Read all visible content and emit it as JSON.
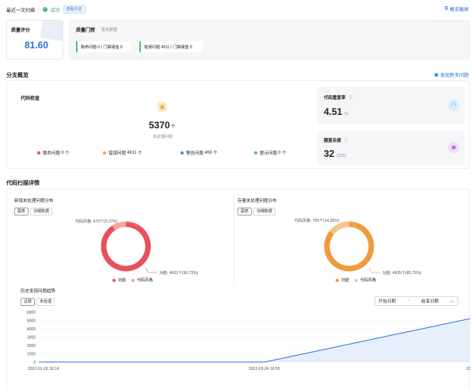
{
  "header": {
    "title": "最近一次扫描",
    "status": "成功",
    "log_link": "查看日志",
    "summary_link": "概览截屏"
  },
  "quality_score": {
    "label": "质量评分",
    "value": "81.60"
  },
  "quality_gate": {
    "label": "质量门禁",
    "link": "看无数据",
    "items": [
      "致命问题 0 / 门禁阈值 0",
      "错误问题 4911 / 门禁阈值 0"
    ]
  },
  "branch_overview": {
    "title": "分支概览",
    "discover_link": "发现新多问题"
  },
  "code_check": {
    "title": "代码检查",
    "value": "5370",
    "unit": "个",
    "sub": "未处理问题",
    "items": [
      {
        "label": "致命问题",
        "count": "0",
        "unit": "个",
        "color": "#e8505b"
      },
      {
        "label": "错误问题",
        "count": "4911",
        "unit": "个",
        "color": "#f0a24a"
      },
      {
        "label": "警告问题",
        "count": "459",
        "unit": "个",
        "color": "#4a8fe0"
      },
      {
        "label": "提示问题",
        "count": "0",
        "unit": "个",
        "color": "#52c26b"
      }
    ]
  },
  "duplication": {
    "title": "代码重复率",
    "value": "4.51",
    "unit": "%"
  },
  "complexity": {
    "title": "圈复杂度",
    "value": "32",
    "extra": "(222)"
  },
  "scan_detail": {
    "title": "代码扫描详情"
  },
  "new_dist": {
    "title": "新增未处理问题分布",
    "tabs": [
      "图表",
      "详细数据"
    ],
    "label_top": "代码风格: 470个(9.27%)",
    "label_bottom": "功能: 4602个(90.73%)",
    "legend": [
      "功能",
      "代码风格"
    ]
  },
  "stock_dist": {
    "title": "存量未处理问题分布",
    "tabs": [
      "图表",
      "详细数据"
    ],
    "label_top": "代码风格: 765个(14.25%)",
    "label_bottom": "功能: 4605个(85.75%)",
    "legend": [
      "功能",
      "代码风格"
    ]
  },
  "trend": {
    "title": "历史发现问题趋势",
    "tabs": [
      "总数",
      "未处理"
    ],
    "start_placeholder": "开始日期",
    "sep": "~",
    "end_placeholder": "结束日期"
  },
  "chart_data": [
    {
      "type": "pie",
      "title": "新增未处理问题分布",
      "categories": [
        "功能",
        "代码风格"
      ],
      "values": [
        4602,
        470
      ],
      "percent": [
        90.73,
        9.27
      ],
      "colors": [
        "#e8505b",
        "#f3a69b"
      ]
    },
    {
      "type": "pie",
      "title": "存量未处理问题分布",
      "categories": [
        "功能",
        "代码风格"
      ],
      "values": [
        4605,
        765
      ],
      "percent": [
        85.75,
        14.25
      ],
      "colors": [
        "#ef9a3c",
        "#f6c48f"
      ]
    },
    {
      "type": "area",
      "title": "历史发现问题趋势",
      "x": [
        "2022-01-18 18:14",
        "2022-03-24 16:56",
        "20"
      ],
      "values": [
        0,
        0,
        5370
      ],
      "yticks": [
        "6000",
        "5000",
        "4000",
        "3000",
        "2000",
        "1000",
        "0"
      ],
      "ylim": [
        0,
        6000
      ],
      "color": "#2b6fd8"
    }
  ]
}
